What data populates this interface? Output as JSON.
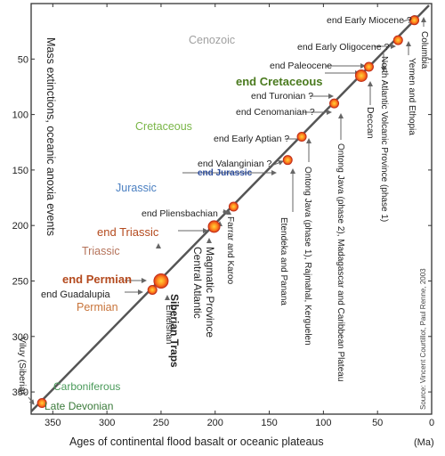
{
  "chart_data": {
    "type": "scatter",
    "xlabel": "Ages of continental flood basalt or oceanic plateaus",
    "xunit": "(Ma)",
    "ylabel": "Mass extinctions, oceanic anoxia events",
    "source": "Source: Vincent Courtillot, Paul Renne, 2003",
    "xlim": [
      370,
      0
    ],
    "ylim": [
      0,
      370
    ],
    "x_ticks": [
      "350",
      "300",
      "250",
      "200",
      "150",
      "100",
      "50",
      "0"
    ],
    "y_ticks": [
      "50",
      "100",
      "150",
      "200",
      "250",
      "300",
      "350"
    ],
    "x_tick_values": [
      350,
      300,
      250,
      200,
      150,
      100,
      50,
      0
    ],
    "y_tick_values": [
      50,
      100,
      150,
      200,
      250,
      300,
      350
    ],
    "eras": [
      {
        "label": "Cenozoic",
        "color": "#a0a0a0"
      },
      {
        "label": "Cretaceous",
        "color": "#7ab648"
      },
      {
        "label": "Jurassic",
        "color": "#4a7fc1"
      },
      {
        "label": "Triassic",
        "color": "#b5735a"
      },
      {
        "label": "Permian",
        "color": "#c8743a"
      },
      {
        "label": "Carboniferous",
        "color": "#4a9a5a"
      }
    ],
    "events": [
      {
        "label": "Late Devonian",
        "color": "#3a7a3a"
      },
      {
        "label": "end Guadalupia",
        "color": "#222222"
      },
      {
        "label": "end Permian",
        "color": "#b44a1e"
      },
      {
        "label": "end Triassic",
        "color": "#b44a1e"
      },
      {
        "label": "end Pliensbachian",
        "color": "#222222"
      },
      {
        "label": "end Jurassic",
        "color": "#2a4a9a"
      },
      {
        "label": "end Valanginian ?",
        "color": "#222222"
      },
      {
        "label": "end Early Aptian ?",
        "color": "#222222"
      },
      {
        "label": "end Cenomanian ?",
        "color": "#222222"
      },
      {
        "label": "end Turonian ?",
        "color": "#222222"
      },
      {
        "label": "end Cretaceous",
        "color": "#4a7a1e"
      },
      {
        "label": "end Paleocene",
        "color": "#222222"
      },
      {
        "label": "end Early Oligocene ?",
        "color": "#222222"
      },
      {
        "label": "end Early Miocene ?",
        "color": "#222222"
      }
    ],
    "provinces": [
      {
        "label": "Viluy (Siberia)",
        "x": 360,
        "y": 360
      },
      {
        "label": "Emeishan",
        "x": 258,
        "y": 258
      },
      {
        "label": "Siberian Traps",
        "x": 250,
        "y": 250
      },
      {
        "label": "Central Atlantic Magmatic Province",
        "x": 201,
        "y": 201
      },
      {
        "label": "Farrar and Karoo",
        "x": 183,
        "y": 183
      },
      {
        "label": "Etendeka and Panana",
        "x": 133,
        "y": 141
      },
      {
        "label": "Ontong Java (phase 1), Rajmahal, Kerguelen",
        "x": 120,
        "y": 120
      },
      {
        "label": "Ontong Java (phase 2), Madagascar and Caribbean Plateau",
        "x": 90,
        "y": 90
      },
      {
        "label": "Deccan",
        "x": 65,
        "y": 65
      },
      {
        "label": "North Atlantic Volcanic Province (phase 1)",
        "x": 58,
        "y": 57
      },
      {
        "label": "Yemen and Ethopia",
        "x": 31,
        "y": 33
      },
      {
        "label": "Columbia",
        "x": 16,
        "y": 15
      }
    ]
  }
}
